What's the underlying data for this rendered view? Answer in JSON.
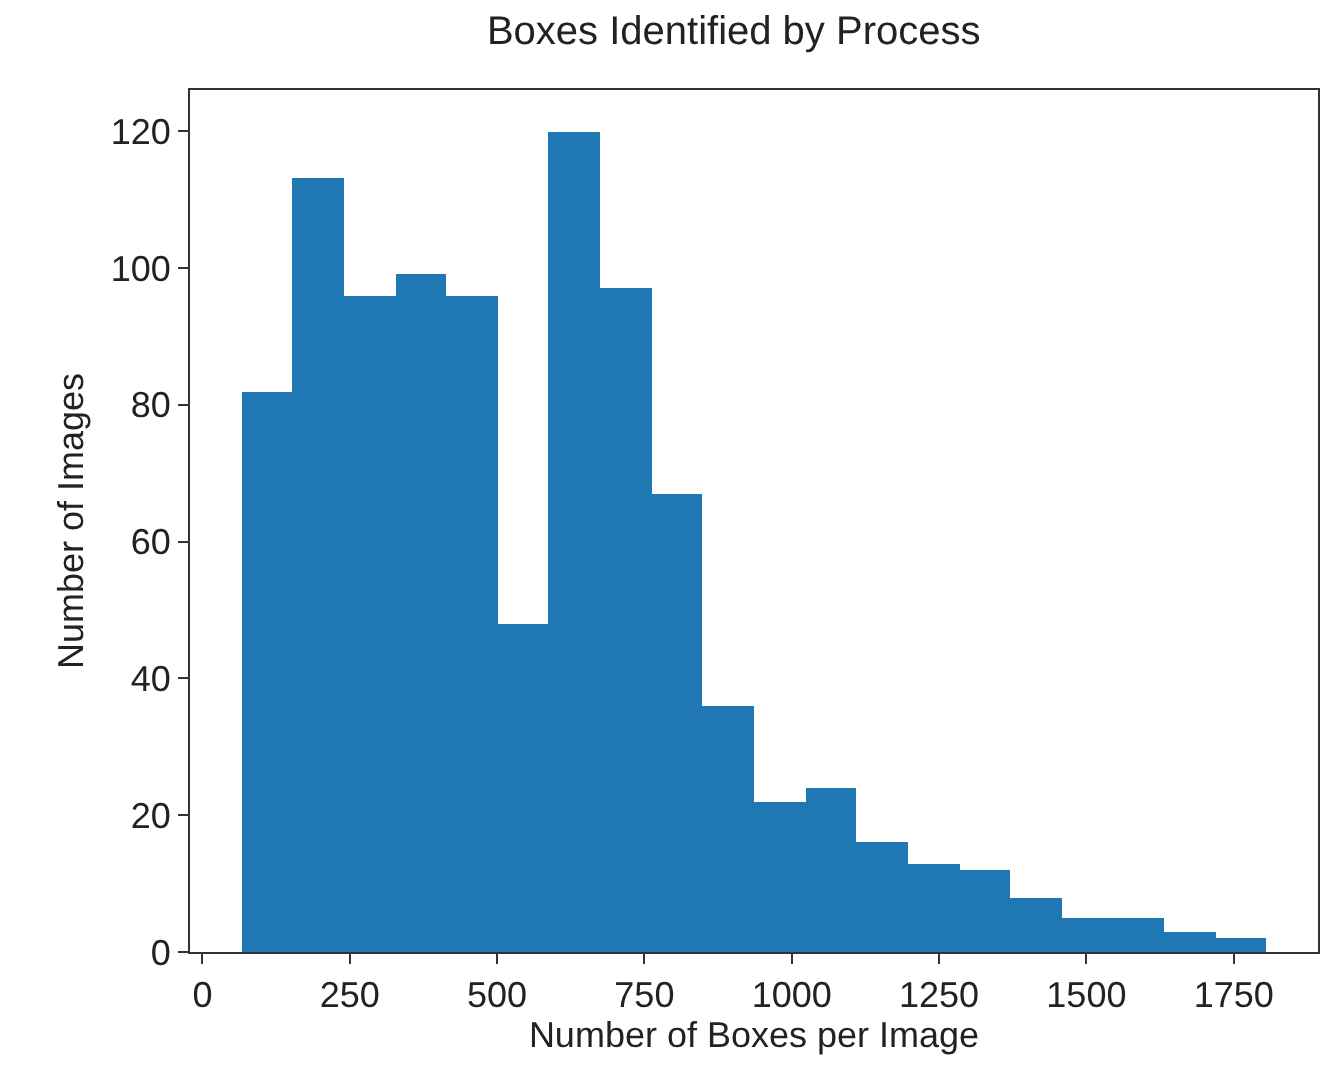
{
  "chart_data": {
    "type": "histogram",
    "title": "Boxes Identified by Process",
    "xlabel": "Number of Boxes per Image",
    "ylabel": "Number of Images",
    "bins": [
      66,
      153,
      240,
      327,
      414,
      501,
      588,
      675,
      762,
      849,
      936,
      1023,
      1110,
      1197,
      1284,
      1371,
      1458,
      1545,
      1632,
      1719,
      1806
    ],
    "values": [
      82,
      113,
      96,
      99,
      96,
      48,
      120,
      97,
      67,
      36,
      22,
      24,
      16,
      13,
      12,
      8,
      5,
      5,
      3,
      2
    ],
    "color": "#1f77b4",
    "xlim": [
      -21,
      1893
    ],
    "xticks": [
      0,
      250,
      500,
      750,
      1000,
      1250,
      1500,
      1750
    ],
    "ylim": [
      0,
      126
    ],
    "yticks": [
      0,
      20,
      40,
      60,
      80,
      100,
      120
    ]
  }
}
